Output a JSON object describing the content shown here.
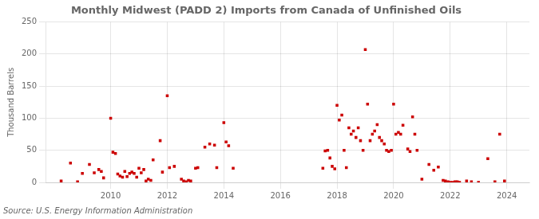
{
  "chart_data": {
    "type": "scatter",
    "title": "Monthly Midwest (PADD 2) Imports from Canada of Unfinished Oils",
    "y_label": "Thousand Barrels",
    "annotations": [
      "Source: U.S. Energy Information Administration"
    ],
    "color": "#cc0000",
    "marker": "square",
    "grid": true,
    "xlim": [
      2007.7,
      2024.8
    ],
    "xticks": [
      2010,
      2012,
      2014,
      2016,
      2018,
      2020,
      2022,
      2024
    ],
    "ylim": [
      0,
      250
    ],
    "yticks": [
      0,
      50,
      100,
      150,
      200,
      250
    ],
    "x": [
      2008.25,
      2008.58,
      2008.83,
      2009.0,
      2009.25,
      2009.42,
      2009.58,
      2009.67,
      2009.75,
      2010.0,
      2010.08,
      2010.17,
      2010.25,
      2010.33,
      2010.42,
      2010.5,
      2010.58,
      2010.67,
      2010.75,
      2010.83,
      2010.92,
      2011.0,
      2011.08,
      2011.17,
      2011.25,
      2011.33,
      2011.42,
      2011.5,
      2011.75,
      2011.83,
      2012.0,
      2012.08,
      2012.25,
      2012.5,
      2012.58,
      2012.67,
      2012.75,
      2012.83,
      2013.0,
      2013.08,
      2013.33,
      2013.5,
      2013.67,
      2013.75,
      2014.0,
      2014.08,
      2014.17,
      2014.33,
      2017.5,
      2017.58,
      2017.67,
      2017.75,
      2017.83,
      2017.92,
      2018.0,
      2018.08,
      2018.17,
      2018.25,
      2018.33,
      2018.42,
      2018.5,
      2018.58,
      2018.67,
      2018.75,
      2018.83,
      2018.92,
      2019.0,
      2019.08,
      2019.17,
      2019.25,
      2019.33,
      2019.42,
      2019.5,
      2019.58,
      2019.67,
      2019.75,
      2019.83,
      2019.92,
      2020.0,
      2020.08,
      2020.17,
      2020.25,
      2020.33,
      2020.5,
      2020.58,
      2020.67,
      2020.75,
      2020.83,
      2021.0,
      2021.25,
      2021.42,
      2021.58,
      2021.75,
      2021.83,
      2021.92,
      2022.0,
      2022.08,
      2022.17,
      2022.25,
      2022.33,
      2022.58,
      2022.75,
      2023.0,
      2023.33,
      2023.58,
      2023.75,
      2023.92
    ],
    "values": [
      2,
      30,
      1,
      14,
      28,
      15,
      20,
      17,
      7,
      100,
      47,
      45,
      13,
      10,
      8,
      17,
      9,
      14,
      16,
      14,
      8,
      22,
      15,
      20,
      2,
      5,
      3,
      35,
      65,
      16,
      135,
      23,
      25,
      5,
      2,
      1,
      3,
      2,
      22,
      23,
      55,
      60,
      58,
      23,
      93,
      63,
      57,
      22,
      22,
      49,
      50,
      38,
      25,
      21,
      120,
      97,
      105,
      50,
      23,
      85,
      75,
      80,
      70,
      85,
      65,
      50,
      207,
      122,
      65,
      75,
      80,
      90,
      70,
      65,
      60,
      50,
      48,
      50,
      122,
      75,
      78,
      75,
      89,
      52,
      48,
      102,
      75,
      50,
      5,
      28,
      19,
      24,
      3,
      2,
      1,
      0,
      0,
      1,
      1,
      0,
      2,
      1,
      0,
      37,
      1,
      75,
      2
    ]
  }
}
